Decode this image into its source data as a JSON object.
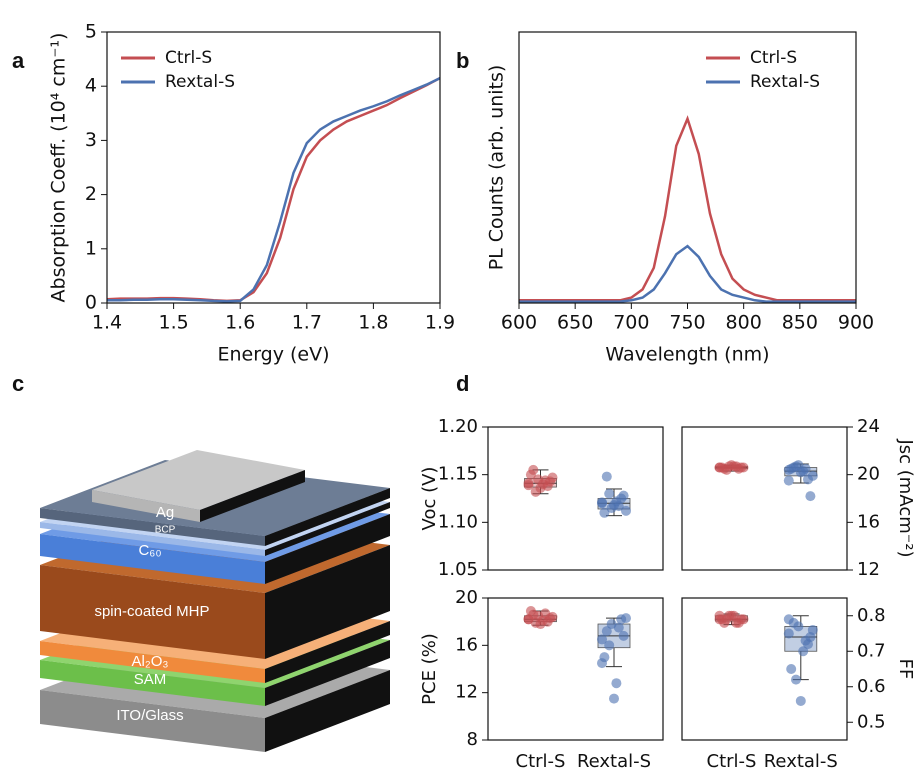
{
  "panel_labels": [
    "a",
    "b",
    "c",
    "d"
  ],
  "diagram": {
    "layers": [
      "Ag",
      "BCP",
      "C₆₀",
      "spin-coated MHP",
      "Al₂O₃",
      "SAM",
      "ITO/Glass"
    ]
  },
  "chart_data": [
    {
      "type": "line",
      "xlabel": "Energy (eV)",
      "ylabel": "Absorption Coeff. (10⁴ cm⁻¹)",
      "x": [
        1.4,
        1.42,
        1.44,
        1.46,
        1.48,
        1.5,
        1.52,
        1.54,
        1.56,
        1.58,
        1.6,
        1.62,
        1.64,
        1.66,
        1.68,
        1.7,
        1.72,
        1.74,
        1.76,
        1.78,
        1.8,
        1.82,
        1.84,
        1.86,
        1.88,
        1.9
      ],
      "series": [
        {
          "name": "Ctrl-S",
          "color": "#c44e52",
          "values": [
            0.07,
            0.08,
            0.08,
            0.08,
            0.09,
            0.09,
            0.08,
            0.07,
            0.05,
            0.04,
            0.05,
            0.2,
            0.55,
            1.2,
            2.1,
            2.7,
            3.0,
            3.2,
            3.35,
            3.45,
            3.55,
            3.65,
            3.78,
            3.9,
            4.02,
            4.15
          ]
        },
        {
          "name": "Rextal-S",
          "color": "#4c72b0",
          "values": [
            0.05,
            0.05,
            0.06,
            0.06,
            0.07,
            0.07,
            0.06,
            0.05,
            0.04,
            0.03,
            0.04,
            0.25,
            0.7,
            1.5,
            2.4,
            2.95,
            3.2,
            3.35,
            3.45,
            3.55,
            3.63,
            3.72,
            3.83,
            3.93,
            4.03,
            4.15
          ]
        }
      ],
      "xlim": [
        1.4,
        1.9
      ],
      "xticks": [
        1.4,
        1.5,
        1.6,
        1.7,
        1.8,
        1.9
      ],
      "ylim": [
        0,
        5
      ],
      "yticks": [
        0,
        1,
        2,
        3,
        4,
        5
      ],
      "legend": "upper left"
    },
    {
      "type": "line",
      "xlabel": "Wavelength (nm)",
      "ylabel": "PL Counts (arb. units)",
      "x": [
        600,
        610,
        620,
        630,
        640,
        650,
        660,
        670,
        680,
        690,
        700,
        710,
        720,
        730,
        740,
        750,
        760,
        770,
        780,
        790,
        800,
        810,
        820,
        830,
        840,
        850,
        860,
        870,
        880,
        890,
        900
      ],
      "series": [
        {
          "name": "Ctrl-S",
          "color": "#c44e52",
          "values": [
            0.01,
            0.01,
            0.01,
            0.01,
            0.01,
            0.01,
            0.01,
            0.01,
            0.01,
            0.01,
            0.02,
            0.05,
            0.13,
            0.32,
            0.58,
            0.68,
            0.55,
            0.33,
            0.18,
            0.09,
            0.05,
            0.03,
            0.02,
            0.01,
            0.01,
            0.01,
            0.01,
            0.01,
            0.01,
            0.01,
            0.01
          ]
        },
        {
          "name": "Rextal-S",
          "color": "#4c72b0",
          "values": [
            0.005,
            0.005,
            0.005,
            0.005,
            0.005,
            0.005,
            0.005,
            0.005,
            0.005,
            0.005,
            0.01,
            0.02,
            0.05,
            0.11,
            0.18,
            0.21,
            0.17,
            0.1,
            0.05,
            0.03,
            0.02,
            0.01,
            0.005,
            0.005,
            0.005,
            0.005,
            0.005,
            0.005,
            0.005,
            0.005,
            0.005
          ]
        }
      ],
      "xlim": [
        600,
        900
      ],
      "xticks": [
        600,
        650,
        700,
        750,
        800,
        850,
        900
      ],
      "ylim": [
        0,
        1
      ],
      "legend": "upper right"
    },
    {
      "type": "box",
      "ylabel": "Voc (V)",
      "yaxis": "left",
      "categories": [
        null,
        null
      ],
      "ylim": [
        1.05,
        1.2
      ],
      "yticks": [
        1.05,
        {
          "value": 1.1,
          "label": "1.10"
        },
        1.15,
        {
          "value": 1.2,
          "label": "1.20"
        }
      ],
      "groups": [
        {
          "color": "#c44e52",
          "values": [
            1.141,
            1.145,
            1.138,
            1.15,
            1.136,
            1.143,
            1.155,
            1.14,
            1.147,
            1.132,
            1.144,
            1.139
          ],
          "box": [
            1.13,
            1.137,
            1.141,
            1.146,
            1.155
          ]
        },
        {
          "color": "#4c72b0",
          "values": [
            1.12,
            1.115,
            1.125,
            1.11,
            1.118,
            1.128,
            1.148,
            1.122,
            1.112,
            1.13,
            1.117,
            1.121
          ],
          "box": [
            1.107,
            1.114,
            1.12,
            1.125,
            1.135
          ]
        }
      ]
    },
    {
      "type": "box",
      "ylabel": "Jsc (mAcm⁻²)",
      "yaxis": "right",
      "categories": [
        null,
        null
      ],
      "ylim": [
        12,
        24
      ],
      "yticks": [
        12,
        16,
        20,
        24
      ],
      "groups": [
        {
          "color": "#c44e52",
          "values": [
            20.6,
            20.7,
            20.5,
            20.6,
            20.8,
            20.6,
            20.5,
            20.7,
            20.6,
            20.4,
            20.7,
            20.6
          ],
          "box": [
            20.3,
            20.5,
            20.6,
            20.7,
            20.8
          ]
        },
        {
          "color": "#4c72b0",
          "values": [
            20.4,
            20.8,
            19.6,
            20.5,
            20.2,
            18.2,
            20.6,
            20.3,
            19.9,
            20.7,
            20.5,
            19.5
          ],
          "box": [
            19.3,
            19.9,
            20.3,
            20.6,
            20.9
          ]
        }
      ]
    },
    {
      "type": "box",
      "ylabel": "PCE (%)",
      "yaxis": "left",
      "categories": [
        "Ctrl-S",
        "Rextal-S"
      ],
      "ylim": [
        8,
        20
      ],
      "yticks": [
        8,
        12,
        16,
        20
      ],
      "groups": [
        {
          "color": "#c44e52",
          "values": [
            18.2,
            18.5,
            18.0,
            18.9,
            17.8,
            18.3,
            18.6,
            18.1,
            18.4,
            17.9,
            18.7,
            18.2
          ],
          "box": [
            17.7,
            18.0,
            18.2,
            18.5,
            18.9
          ]
        },
        {
          "color": "#4c72b0",
          "values": [
            16.5,
            17.8,
            18.2,
            15.0,
            11.5,
            16.8,
            17.2,
            12.8,
            18.3,
            16.0,
            17.5,
            14.5
          ],
          "box": [
            14.2,
            15.8,
            16.8,
            17.8,
            18.3
          ]
        }
      ]
    },
    {
      "type": "box",
      "ylabel": "FF",
      "yaxis": "right",
      "categories": [
        "Ctrl-S",
        "Rextal-S"
      ],
      "ylim": [
        0.45,
        0.85
      ],
      "yticks": [
        0.5,
        0.6,
        0.7,
        0.8
      ],
      "groups": [
        {
          "color": "#c44e52",
          "values": [
            0.79,
            0.8,
            0.78,
            0.79,
            0.8,
            0.79,
            0.78,
            0.8,
            0.79,
            0.79,
            0.78,
            0.8
          ],
          "box": [
            0.775,
            0.785,
            0.79,
            0.8,
            0.805
          ]
        },
        {
          "color": "#4c72b0",
          "values": [
            0.75,
            0.77,
            0.72,
            0.65,
            0.56,
            0.74,
            0.78,
            0.7,
            0.76,
            0.62,
            0.73,
            0.79
          ],
          "box": [
            0.62,
            0.7,
            0.74,
            0.77,
            0.8
          ]
        }
      ]
    }
  ]
}
